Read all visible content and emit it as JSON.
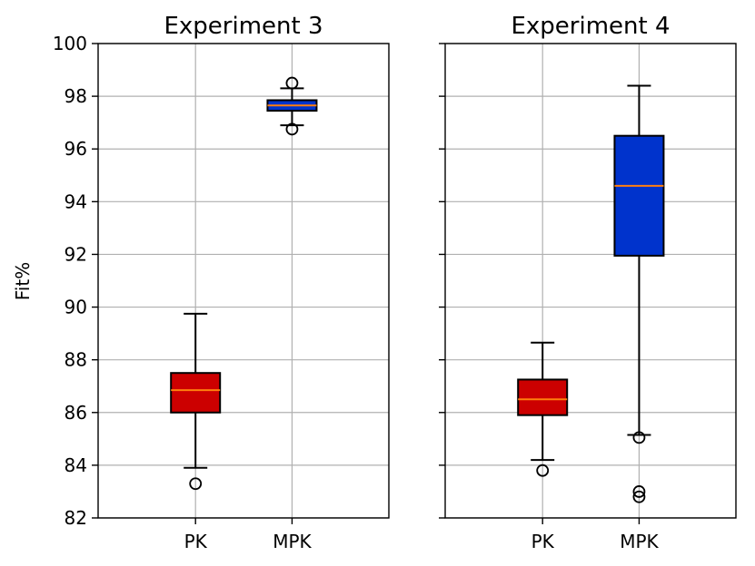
{
  "chart_data": [
    {
      "type": "box",
      "title": "Experiment 3",
      "ylabel": "Fit%",
      "ylim": [
        82,
        100
      ],
      "yticks": [
        "82",
        "84",
        "86",
        "88",
        "90",
        "92",
        "94",
        "96",
        "98",
        "100"
      ],
      "grid": true,
      "categories": [
        "PK",
        "MPK"
      ],
      "boxes": [
        {
          "label": "PK",
          "color": "#cc0000",
          "q1": 86.0,
          "median": 86.85,
          "q3": 87.5,
          "whisker_low": 83.9,
          "whisker_high": 89.75,
          "fliers": [
            83.3
          ]
        },
        {
          "label": "MPK",
          "color": "#0033cc",
          "q1": 97.45,
          "median": 97.65,
          "q3": 97.85,
          "whisker_low": 96.9,
          "whisker_high": 98.3,
          "fliers": [
            96.75,
            98.5
          ]
        }
      ]
    },
    {
      "type": "box",
      "title": "Experiment 4",
      "ylabel": "",
      "ylim": [
        82,
        100
      ],
      "yticks": [
        "82",
        "84",
        "86",
        "88",
        "90",
        "92",
        "94",
        "96",
        "98",
        "100"
      ],
      "grid": true,
      "categories": [
        "PK",
        "MPK"
      ],
      "boxes": [
        {
          "label": "PK",
          "color": "#cc0000",
          "q1": 85.9,
          "median": 86.5,
          "q3": 87.25,
          "whisker_low": 84.2,
          "whisker_high": 88.65,
          "fliers": [
            83.8
          ]
        },
        {
          "label": "MPK",
          "color": "#0033cc",
          "q1": 91.95,
          "median": 94.6,
          "q3": 96.5,
          "whisker_low": 85.15,
          "whisker_high": 98.4,
          "fliers": [
            85.05,
            83.0,
            82.8
          ]
        }
      ]
    }
  ]
}
